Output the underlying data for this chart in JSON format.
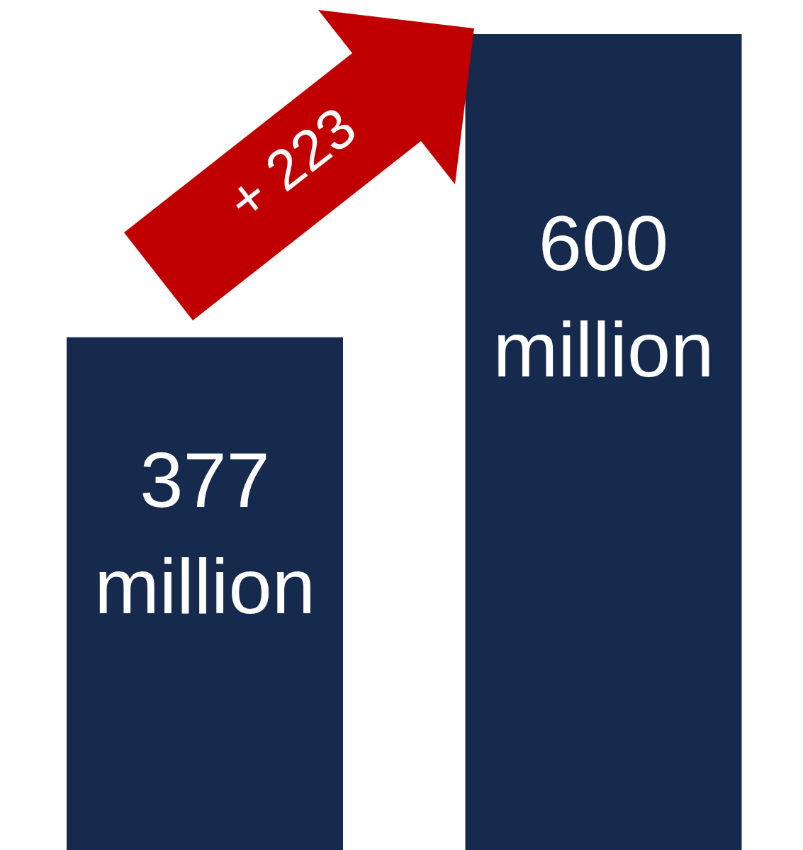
{
  "chart_data": {
    "type": "bar",
    "categories": [
      null,
      null
    ],
    "values": [
      377,
      600
    ],
    "color": "#152a4c",
    "value_labels": [
      "377 million",
      "600 million"
    ],
    "annotations": [
      "+ 223"
    ],
    "grid": false,
    "legend": false
  }
}
